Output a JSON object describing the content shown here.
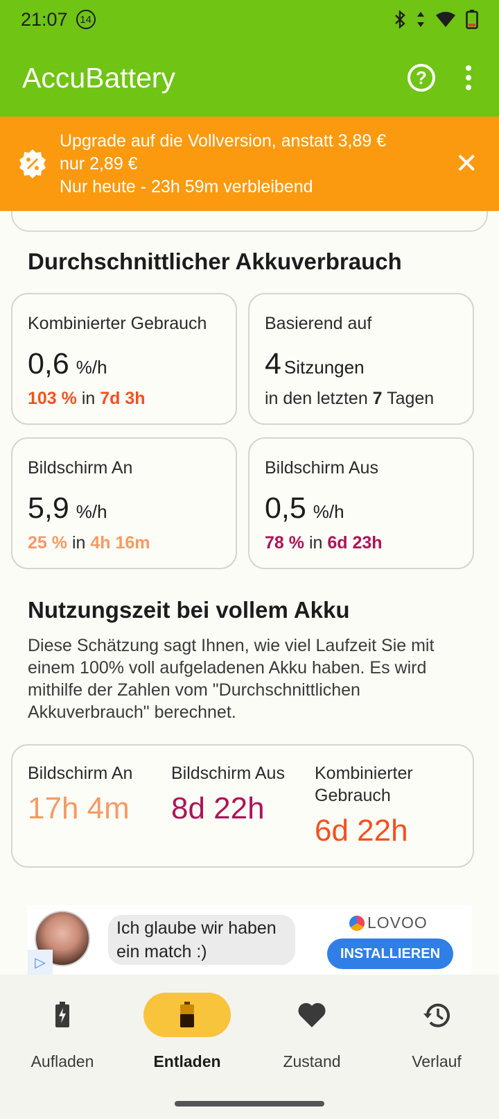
{
  "status_bar": {
    "time": "21:07",
    "badge": "14"
  },
  "app_bar": {
    "title": "AccuBattery"
  },
  "promo": {
    "line1": "Upgrade auf die Vollversion, anstatt 3,89 €",
    "line2": "nur 2,89 €",
    "line3": "Nur heute - 23h 59m verbleibend"
  },
  "average": {
    "title": "Durchschnittlicher Akkuverbrauch",
    "combined": {
      "label": "Kombinierter Gebrauch",
      "value": "0,6",
      "unit": "%/h",
      "percent": "103 %",
      "in": "in",
      "duration": "7d 3h"
    },
    "based_on": {
      "label": "Basierend auf",
      "value": "4",
      "suffix": "Sitzungen",
      "line_pre": "in den letzten",
      "days": "7",
      "line_post": "Tagen"
    },
    "screen_on": {
      "label": "Bildschirm An",
      "value": "5,9",
      "unit": "%/h",
      "percent": "25 %",
      "in": "in",
      "duration": "4h 16m"
    },
    "screen_off": {
      "label": "Bildschirm Aus",
      "value": "0,5",
      "unit": "%/h",
      "percent": "78 %",
      "in": "in",
      "duration": "6d 23h"
    }
  },
  "runtime": {
    "title": "Nutzungszeit bei vollem Akku",
    "description": "Diese Schätzung sagt Ihnen, wie viel Laufzeit Sie mit einem 100% voll aufgeladenen Akku haben. Es wird mithilfe der Zahlen vom \"Durchschnittlichen Akkuverbrauch\" berechnet.",
    "screen_on": {
      "label": "Bildschirm An",
      "value": "17h 4m"
    },
    "screen_off": {
      "label": "Bildschirm Aus",
      "value": "8d 22h"
    },
    "combined": {
      "label": "Kombinierter Gebrauch",
      "value": "6d 22h"
    }
  },
  "ad": {
    "message": "Ich glaube wir haben ein match :)",
    "brand": "LOVOO",
    "cta": "INSTALLIEREN"
  },
  "nav": {
    "items": [
      {
        "label": "Aufladen"
      },
      {
        "label": "Entladen"
      },
      {
        "label": "Zustand"
      },
      {
        "label": "Verlauf"
      }
    ],
    "active": "Entladen"
  },
  "colors": {
    "green": "#6fc414",
    "orange_bar": "#fb9a0f",
    "accent_orange": "#f4511e",
    "peach": "#f79a63",
    "magenta": "#ad1457",
    "pill": "#f8c43c"
  }
}
